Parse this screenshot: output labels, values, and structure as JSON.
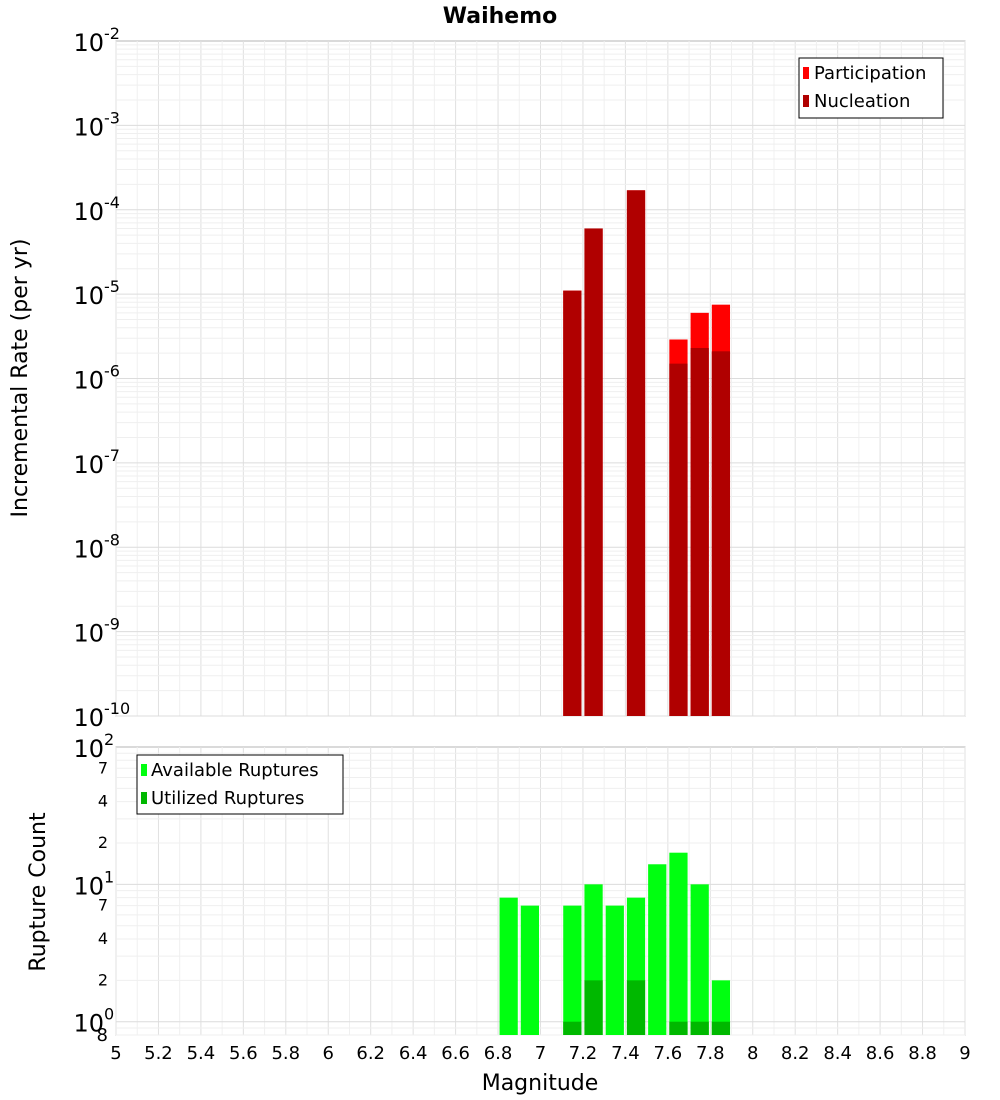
{
  "title": "Waihemo",
  "xlabel": "Magnitude",
  "x_ticks": [
    "5",
    "5.2",
    "5.4",
    "5.6",
    "5.8",
    "6",
    "6.2",
    "6.4",
    "6.6",
    "6.8",
    "7",
    "7.2",
    "7.4",
    "7.6",
    "7.8",
    "8",
    "8.2",
    "8.4",
    "8.6",
    "8.8",
    "9"
  ],
  "chart_data": [
    {
      "type": "bar",
      "title": "Waihemo",
      "xlabel": "Magnitude",
      "ylabel": "Incremental Rate (per yr)",
      "y_scale": "log",
      "xlim": [
        5,
        9
      ],
      "ylim": [
        1e-10,
        0.01
      ],
      "y_tick_bases": [
        "10",
        "10",
        "10",
        "10",
        "10",
        "10",
        "10",
        "10",
        "10"
      ],
      "y_tick_exponents": [
        "-10",
        "-9",
        "-8",
        "-7",
        "-6",
        "-5",
        "-4",
        "-3",
        "-2"
      ],
      "grid": true,
      "legend_position": "top-right",
      "bar_width": 0.1,
      "series": [
        {
          "name": "Participation",
          "color": "#ff0000",
          "x": [
            7.15,
            7.25,
            7.45,
            7.65,
            7.75,
            7.85
          ],
          "values": [
            1.1e-05,
            6e-05,
            0.00017,
            2.9e-06,
            6e-06,
            7.5e-06
          ]
        },
        {
          "name": "Nucleation",
          "color": "#b00000",
          "x": [
            7.15,
            7.25,
            7.45,
            7.65,
            7.75,
            7.85
          ],
          "values": [
            1.1e-05,
            6e-05,
            0.00017,
            1.5e-06,
            2.3e-06,
            2.1e-06
          ]
        }
      ]
    },
    {
      "type": "bar",
      "xlabel": "Magnitude",
      "ylabel": "Rupture Count",
      "y_scale": "log",
      "xlim": [
        5,
        9
      ],
      "ylim": [
        0.8,
        100
      ],
      "y_major_ticks": [
        {
          "base": "10",
          "exp": "0"
        },
        {
          "base": "10",
          "exp": "1"
        },
        {
          "base": "10",
          "exp": "2"
        }
      ],
      "y_minor_ticks": [
        "2",
        "4",
        "7",
        "2",
        "4",
        "7"
      ],
      "y_bottom_label": "8",
      "grid": true,
      "legend_position": "top-left",
      "bar_width": 0.1,
      "series": [
        {
          "name": "Available Ruptures",
          "color": "#00ff10",
          "x": [
            6.85,
            6.95,
            7.15,
            7.25,
            7.35,
            7.45,
            7.55,
            7.65,
            7.75,
            7.85
          ],
          "values": [
            8,
            7,
            7,
            10,
            7,
            8,
            14,
            17,
            10,
            2
          ]
        },
        {
          "name": "Utilized Ruptures",
          "color": "#00b800",
          "x": [
            7.15,
            7.25,
            7.45,
            7.65,
            7.75,
            7.85
          ],
          "values": [
            1,
            2,
            2,
            1,
            1,
            1
          ]
        }
      ]
    }
  ]
}
